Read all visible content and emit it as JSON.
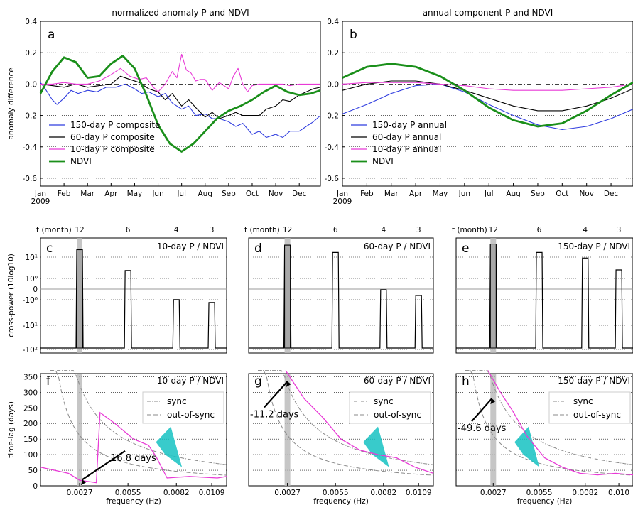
{
  "colors": {
    "blue": "#2f3cdf",
    "black": "#000000",
    "magenta": "#e83ad6",
    "green": "#1a8f1a",
    "cyan": "#15c2c2",
    "gray_band": "#b8b8b8",
    "dashed_gray": "#8a8a8a"
  },
  "chart_data": [
    {
      "id": "a",
      "type": "line",
      "title": "normalized anomaly P and NDVI",
      "panel_letter": "a",
      "ylabel": "anomaly difference",
      "ylim": [
        -0.65,
        0.4
      ],
      "yticks": [
        "0.4",
        "0.2",
        "0.0",
        "-0.2",
        "-0.4",
        "-0.6"
      ],
      "ytick_values": [
        0.4,
        0.2,
        0.0,
        -0.2,
        -0.4,
        -0.6
      ],
      "xticks": [
        "Jan\n2009",
        "Feb",
        "Mar",
        "Apr",
        "May",
        "Jun",
        "Jul",
        "Aug",
        "Sep",
        "Oct",
        "Nov",
        "Dec"
      ],
      "x_unit": "month (1 = Jan 2009)",
      "xlim": [
        1,
        12.9
      ],
      "grid": "horizontal dotted",
      "zero_line": "dash-dot",
      "legend": "lower-left",
      "series": [
        {
          "name": "150-day P composite",
          "color": "blue",
          "x": [
            1,
            1.2,
            1.5,
            1.7,
            2,
            2.3,
            2.6,
            3,
            3.4,
            3.8,
            4.2,
            4.6,
            5,
            5.3,
            5.6,
            6,
            6.3,
            6.6,
            7,
            7.3,
            7.6,
            8,
            8.3,
            8.6,
            9,
            9.3,
            9.6,
            10,
            10.3,
            10.6,
            11,
            11.3,
            11.6,
            12,
            12.3,
            12.6,
            12.9
          ],
          "y": [
            0.01,
            -0.03,
            -0.1,
            -0.13,
            -0.09,
            -0.04,
            -0.06,
            -0.04,
            -0.05,
            -0.02,
            -0.02,
            0.0,
            -0.03,
            -0.06,
            -0.05,
            -0.08,
            -0.06,
            -0.12,
            -0.16,
            -0.14,
            -0.2,
            -0.19,
            -0.22,
            -0.22,
            -0.24,
            -0.27,
            -0.25,
            -0.32,
            -0.3,
            -0.34,
            -0.32,
            -0.34,
            -0.3,
            -0.3,
            -0.27,
            -0.24,
            -0.2
          ]
        },
        {
          "name": "60-day P composite",
          "color": "black",
          "x": [
            1,
            1.5,
            2,
            2.5,
            3,
            3.5,
            4,
            4.4,
            4.8,
            5.2,
            5.6,
            6,
            6.3,
            6.6,
            7,
            7.3,
            7.6,
            8,
            8.3,
            8.6,
            9,
            9.3,
            9.6,
            10,
            10.3,
            10.6,
            11,
            11.3,
            11.6,
            12,
            12.3,
            12.6,
            12.9
          ],
          "y": [
            0.0,
            -0.01,
            -0.02,
            0.0,
            -0.02,
            -0.01,
            0.0,
            0.05,
            0.03,
            0.01,
            -0.03,
            -0.05,
            -0.1,
            -0.06,
            -0.14,
            -0.1,
            -0.15,
            -0.21,
            -0.18,
            -0.22,
            -0.2,
            -0.18,
            -0.2,
            -0.2,
            -0.2,
            -0.16,
            -0.14,
            -0.1,
            -0.11,
            -0.07,
            -0.05,
            -0.03,
            -0.02
          ]
        },
        {
          "name": "10-day P composite",
          "color": "magenta",
          "x": [
            1,
            1.5,
            2,
            2.5,
            3,
            3.5,
            4,
            4.4,
            4.8,
            5.2,
            5.5,
            5.8,
            6,
            6.3,
            6.6,
            6.8,
            7,
            7.2,
            7.4,
            7.6,
            7.8,
            8,
            8.3,
            8.6,
            9,
            9.2,
            9.4,
            9.6,
            9.8,
            10,
            10.3,
            10.6,
            11,
            11.3,
            11.6,
            12,
            12.3,
            12.6,
            12.9
          ],
          "y": [
            0.0,
            0.0,
            0.01,
            0.0,
            0.0,
            0.02,
            0.06,
            0.1,
            0.05,
            0.03,
            0.04,
            -0.02,
            -0.05,
            0.0,
            0.08,
            0.04,
            0.19,
            0.09,
            0.07,
            0.02,
            0.03,
            0.03,
            -0.04,
            0.01,
            -0.03,
            0.05,
            0.1,
            0.0,
            -0.05,
            -0.01,
            0.0,
            0.0,
            0.0,
            0.0,
            -0.01,
            0.0,
            0.0,
            0.0,
            0.0
          ]
        },
        {
          "name": "NDVI",
          "color": "green",
          "width": 2.8,
          "x": [
            1,
            1.5,
            2,
            2.5,
            3,
            3.5,
            4,
            4.5,
            5,
            5.5,
            6,
            6.5,
            7,
            7.5,
            8,
            8.5,
            9,
            9.5,
            10,
            10.5,
            11,
            11.5,
            12,
            12.5,
            12.9
          ],
          "y": [
            -0.06,
            0.08,
            0.17,
            0.14,
            0.04,
            0.05,
            0.13,
            0.18,
            0.1,
            -0.07,
            -0.26,
            -0.38,
            -0.43,
            -0.38,
            -0.3,
            -0.22,
            -0.17,
            -0.14,
            -0.1,
            -0.05,
            -0.01,
            -0.05,
            -0.07,
            -0.06,
            -0.04
          ]
        }
      ]
    },
    {
      "id": "b",
      "type": "line",
      "title": "annual component P and NDVI",
      "panel_letter": "b",
      "ylim": [
        -0.65,
        0.4
      ],
      "yticks": [
        "0.4",
        "0.2",
        "0.0",
        "-0.2",
        "-0.4",
        "-0.6"
      ],
      "ytick_values": [
        0.4,
        0.2,
        0.0,
        -0.2,
        -0.4,
        -0.6
      ],
      "xticks": [
        "Jan\n2009",
        "Feb",
        "Mar",
        "Apr",
        "May",
        "Jun",
        "Jul",
        "Aug",
        "Sep",
        "Oct",
        "Nov",
        "Dec"
      ],
      "xlim": [
        1,
        12.9
      ],
      "grid": "horizontal dotted",
      "zero_line": "dash-dot",
      "legend": "lower-left",
      "series": [
        {
          "name": "150-day P annual",
          "color": "blue",
          "x": [
            1,
            2,
            3,
            4,
            5,
            6,
            7,
            8,
            9,
            10,
            11,
            12,
            12.9
          ],
          "y": [
            -0.19,
            -0.13,
            -0.06,
            -0.01,
            0.0,
            -0.05,
            -0.13,
            -0.2,
            -0.26,
            -0.29,
            -0.27,
            -0.22,
            -0.16
          ]
        },
        {
          "name": "60-day P annual",
          "color": "black",
          "x": [
            1,
            2,
            3,
            4,
            5,
            6,
            7,
            8,
            9,
            10,
            11,
            12,
            12.9
          ],
          "y": [
            -0.04,
            0.0,
            0.02,
            0.02,
            0.0,
            -0.04,
            -0.09,
            -0.14,
            -0.17,
            -0.17,
            -0.14,
            -0.09,
            -0.03
          ]
        },
        {
          "name": "10-day P annual",
          "color": "magenta",
          "x": [
            1,
            2,
            3,
            4,
            5,
            6,
            7,
            8,
            9,
            10,
            11,
            12,
            12.9
          ],
          "y": [
            0.0,
            0.01,
            0.01,
            0.01,
            0.0,
            -0.01,
            -0.03,
            -0.04,
            -0.04,
            -0.04,
            -0.03,
            -0.02,
            0.0
          ]
        },
        {
          "name": "NDVI",
          "color": "green",
          "width": 2.8,
          "x": [
            1,
            2,
            3,
            4,
            5,
            6,
            7,
            8,
            9,
            10,
            11,
            12,
            12.9
          ],
          "y": [
            0.04,
            0.11,
            0.13,
            0.11,
            0.05,
            -0.04,
            -0.15,
            -0.23,
            -0.27,
            -0.25,
            -0.17,
            -0.07,
            0.01
          ]
        }
      ]
    },
    {
      "id": "c",
      "type": "line",
      "panel_letter": "c",
      "label": "10-day P / NDVI",
      "ylabel": "cross-power (10log10)",
      "yticks": [
        "10¹",
        "10⁰",
        "0",
        "-10⁰",
        "-10¹",
        "-10²"
      ],
      "top_axis_label": "t (month)",
      "top_ticks": [
        "12",
        "6",
        "4",
        "3"
      ],
      "peak_heights_label": "symlog scale",
      "peaks": [
        8.6,
        1.4,
        -1.9,
        -2.5
      ]
    },
    {
      "id": "d",
      "type": "line",
      "panel_letter": "d",
      "label": "60-day P / NDVI",
      "top_axis_label": "t (month)",
      "top_ticks": [
        "12",
        "6",
        "4",
        "3"
      ],
      "peaks": [
        12,
        7,
        -0.5,
        -1.2
      ]
    },
    {
      "id": "e",
      "type": "line",
      "panel_letter": "e",
      "label": "150-day P / NDVI",
      "top_axis_label": "t (month)",
      "top_ticks": [
        "12",
        "6",
        "4",
        "3"
      ],
      "peaks": [
        13,
        7,
        4.5,
        1.5
      ]
    },
    {
      "id": "f",
      "type": "line",
      "panel_letter": "f",
      "label": "10-day P / NDVI",
      "ylabel": "time-lag (days)",
      "xlabel": "frequency (Hz)",
      "yticks": [
        "350",
        "300",
        "250",
        "200",
        "150",
        "100",
        "50",
        "0"
      ],
      "ytick_values": [
        350,
        300,
        250,
        200,
        150,
        100,
        50,
        0
      ],
      "xticks": [
        "0.0027",
        "0.0055",
        "0.0082",
        "0.0109"
      ],
      "legend": [
        "sync",
        "out-of-sync"
      ],
      "annotation": "16.8 days"
    },
    {
      "id": "g",
      "type": "line",
      "panel_letter": "g",
      "label": "60-day P / NDVI",
      "xlabel": "frequency (Hz)",
      "xticks": [
        "0.0027",
        "0.0055",
        "0.0082",
        "0.0109"
      ],
      "legend": [
        "sync",
        "out-of-sync"
      ],
      "annotation": "-11.2 days"
    },
    {
      "id": "h",
      "type": "line",
      "panel_letter": "h",
      "label": "150-day P / NDVI",
      "xlabel": "frequency (Hz)",
      "xticks": [
        "0.0027",
        "0.0055",
        "0.0082",
        "0.010"
      ],
      "legend": [
        "sync",
        "out-of-sync"
      ],
      "annotation": "-49.6 days"
    }
  ]
}
